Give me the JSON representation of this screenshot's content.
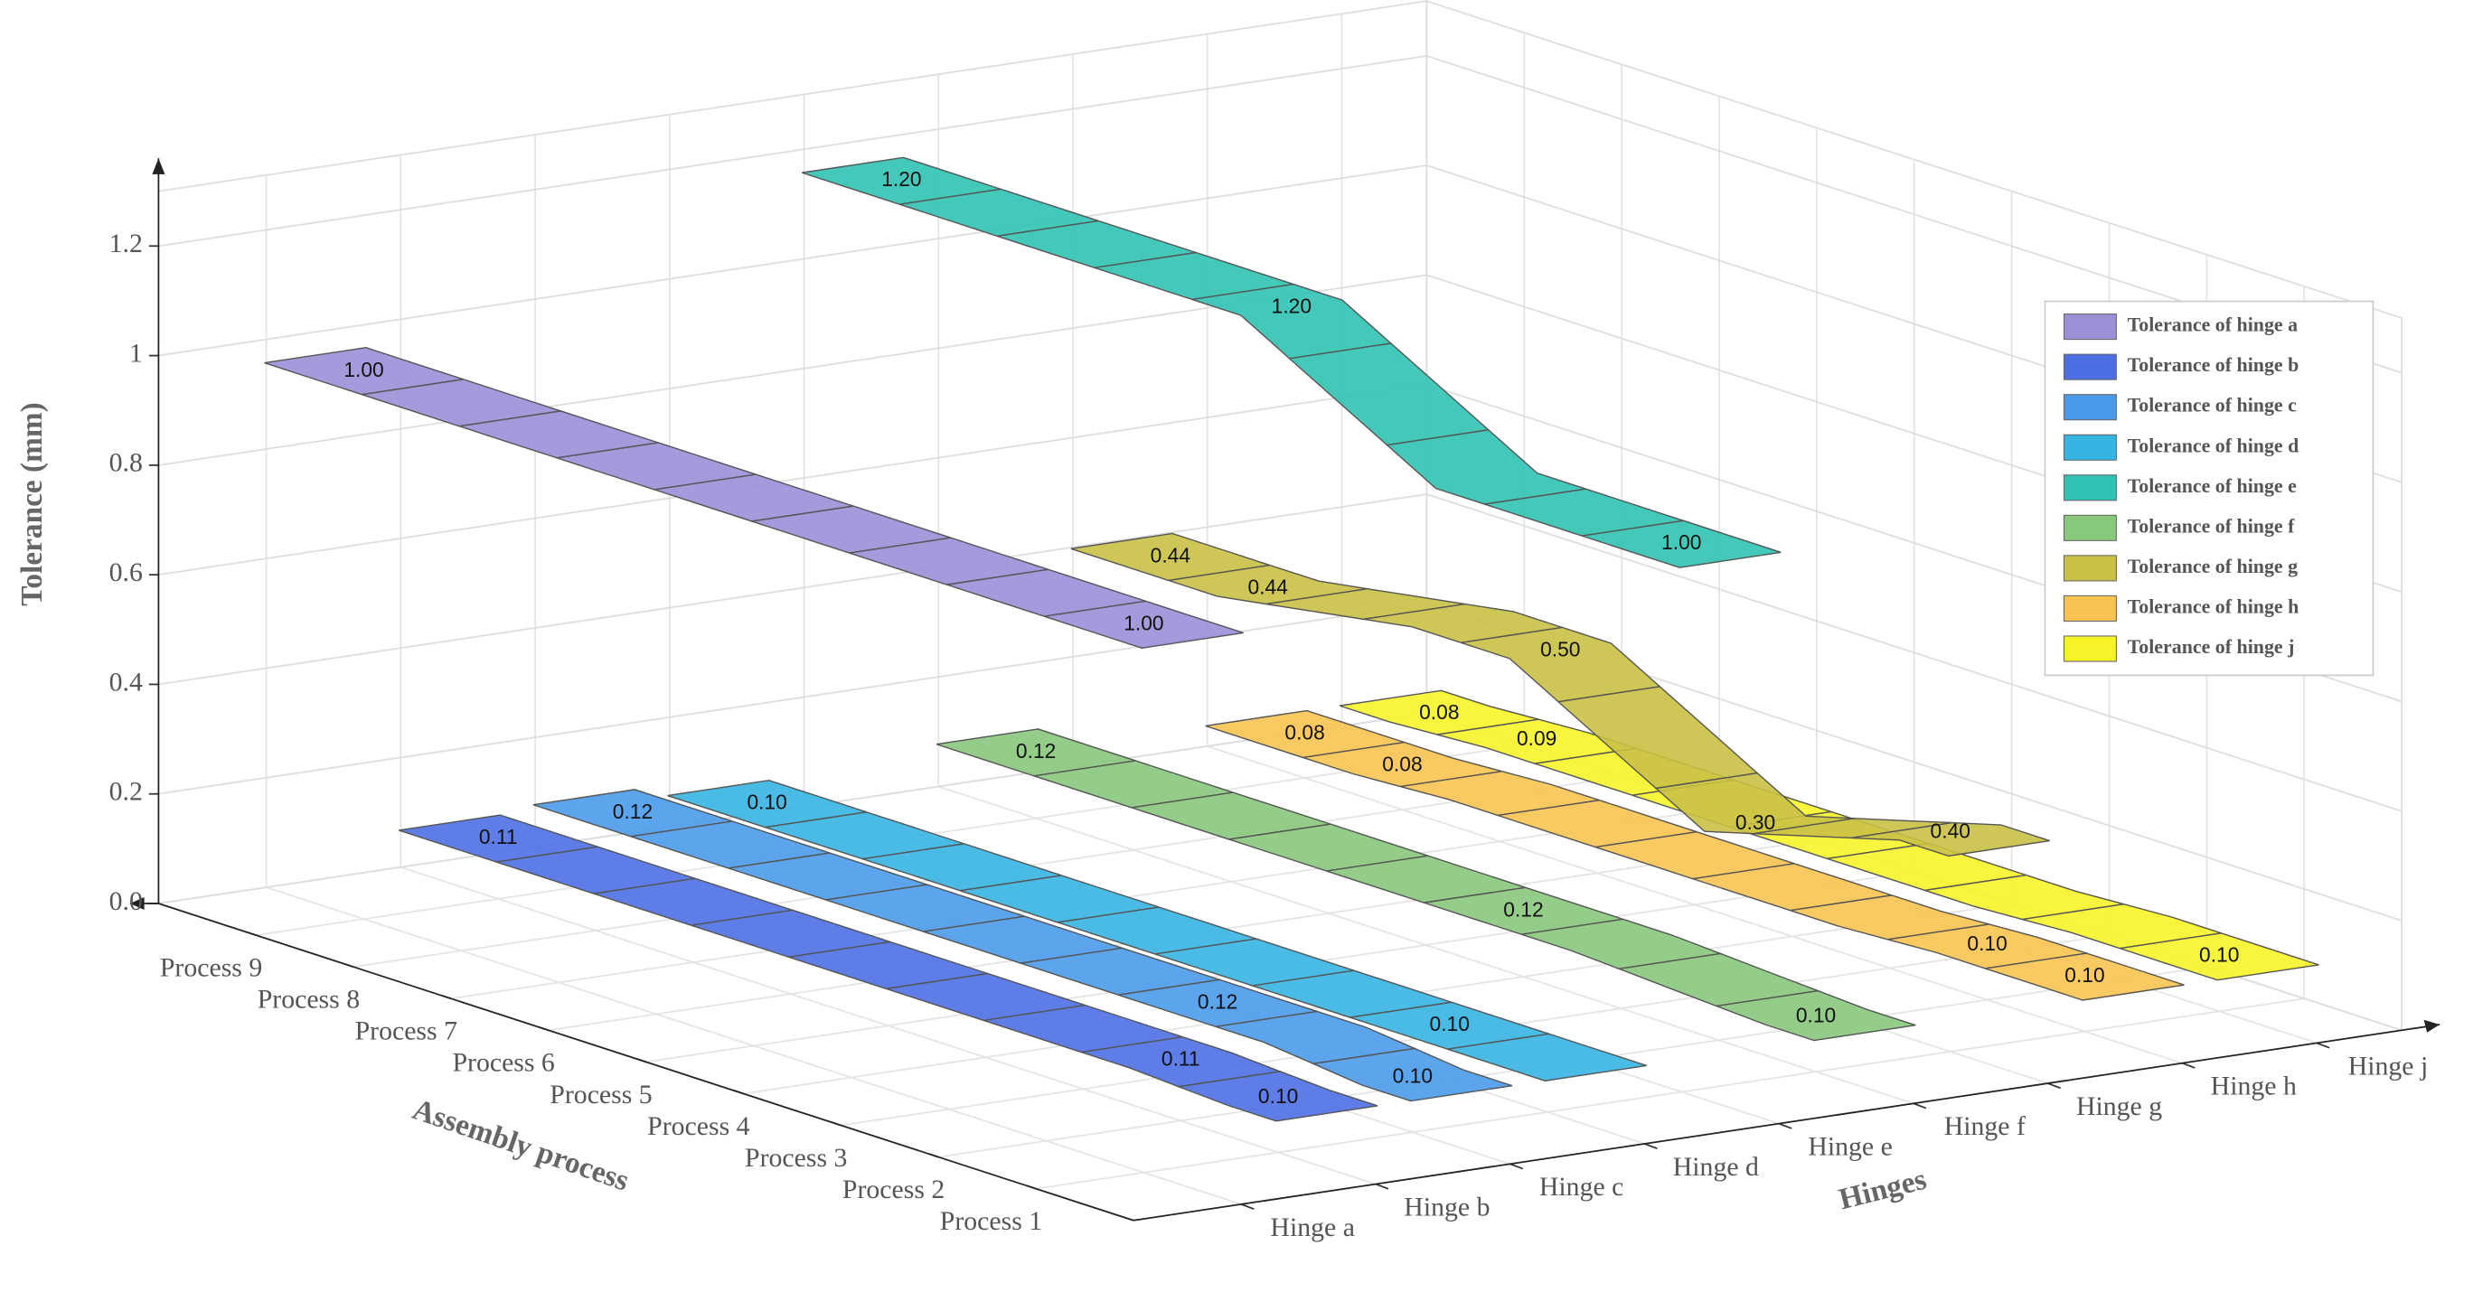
{
  "chart_data": {
    "type": "ribbon3d",
    "x_label": "Assembly process",
    "z_label": "Hinges",
    "y_label": "Tolerance (mm)",
    "categories": [
      "Process 1",
      "Process 2",
      "Process 3",
      "Process 4",
      "Process 5",
      "Process 6",
      "Process 7",
      "Process 8",
      "Process 9"
    ],
    "hinges": [
      "Hinge a",
      "Hinge b",
      "Hinge c",
      "Hinge d",
      "Hinge e",
      "Hinge f",
      "Hinge g",
      "Hinge h",
      "Hinge j"
    ],
    "ylim": [
      0,
      1.3
    ],
    "yticks": [
      {
        "value": 0,
        "label": "0.0"
      },
      0.2,
      0.4,
      0.6,
      0.8,
      1,
      1.2
    ],
    "grid": true,
    "legend": "upper right",
    "series": [
      {
        "name": "Tolerance of hinge a",
        "color": "#9b8fd8",
        "values": [
          1,
          1,
          1,
          1,
          1,
          1,
          1,
          1,
          1
        ],
        "value_labels": [
          "1.00",
          null,
          null,
          null,
          null,
          null,
          null,
          null,
          "1.00"
        ]
      },
      {
        "name": "Tolerance of hinge b",
        "color": "#4d6fe3",
        "values": [
          0.1,
          0.11,
          0.11,
          0.11,
          0.11,
          0.11,
          0.11,
          0.11,
          0.11
        ],
        "value_labels": [
          "0.10",
          "0.11",
          null,
          null,
          null,
          null,
          null,
          null,
          "0.11"
        ]
      },
      {
        "name": "Tolerance of hinge c",
        "color": "#4a9aea",
        "values": [
          0.1,
          0.12,
          0.12,
          0.12,
          0.12,
          0.12,
          0.12,
          0.12,
          0.12
        ],
        "value_labels": [
          "0.10",
          null,
          "0.12",
          null,
          null,
          null,
          null,
          null,
          "0.12"
        ]
      },
      {
        "name": "Tolerance of hinge d",
        "color": "#36b4e2",
        "values": [
          0.1,
          0.1,
          0.1,
          0.1,
          0.1,
          0.1,
          0.1,
          0.1,
          0.1
        ],
        "value_labels": [
          null,
          "0.10",
          null,
          null,
          null,
          null,
          null,
          null,
          "0.10"
        ]
      },
      {
        "name": "Tolerance of hinge e",
        "color": "#30c2b2",
        "values": [
          1,
          1,
          1,
          1.1,
          1.2,
          1.2,
          1.2,
          1.2,
          1.2
        ],
        "value_labels": [
          "1.00",
          null,
          null,
          null,
          "1.20",
          null,
          null,
          null,
          "1.20"
        ]
      },
      {
        "name": "Tolerance of hinge f",
        "color": "#88c87c",
        "values": [
          0.1,
          0.11,
          0.12,
          0.12,
          0.12,
          0.12,
          0.12,
          0.12,
          0.12
        ],
        "value_labels": [
          "0.10",
          null,
          null,
          "0.12",
          null,
          null,
          null,
          null,
          "0.12"
        ]
      },
      {
        "name": "Tolerance of hinge g",
        "color": "#c9c145",
        "values": [
          0.4,
          0.35,
          0.3,
          0.4,
          0.5,
          0.5,
          0.47,
          0.44,
          0.44
        ],
        "value_labels": [
          "0.40",
          null,
          "0.30",
          null,
          "0.50",
          null,
          null,
          "0.44",
          "0.44"
        ]
      },
      {
        "name": "Tolerance of hinge h",
        "color": "#f8c451",
        "values": [
          0.1,
          0.1,
          0.09,
          0.09,
          0.09,
          0.09,
          0.09,
          0.08,
          0.08
        ],
        "value_labels": [
          "0.10",
          "0.10",
          null,
          null,
          null,
          null,
          null,
          "0.08",
          "0.08"
        ]
      },
      {
        "name": "Tolerance of hinge j",
        "color": "#f6f428",
        "values": [
          0.1,
          0.1,
          0.09,
          0.09,
          0.09,
          0.09,
          0.09,
          0.09,
          0.08
        ],
        "value_labels": [
          "0.10",
          null,
          null,
          null,
          null,
          null,
          null,
          "0.09",
          "0.08"
        ]
      }
    ]
  }
}
